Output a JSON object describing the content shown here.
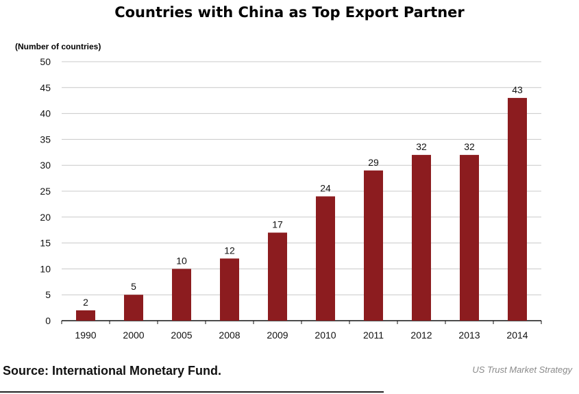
{
  "chart_data": {
    "type": "bar",
    "title": "Countries with China as Top Export Partner",
    "ylabel": "(Number of countries)",
    "xlabel": "",
    "categories": [
      "1990",
      "2000",
      "2005",
      "2008",
      "2009",
      "2010",
      "2011",
      "2012",
      "2013",
      "2014"
    ],
    "values": [
      2,
      5,
      10,
      12,
      17,
      24,
      29,
      32,
      32,
      43
    ],
    "data_labels": [
      "2",
      "5",
      "10",
      "12",
      "17",
      "24",
      "29",
      "32",
      "32",
      "43"
    ],
    "ylim": [
      0,
      50
    ],
    "yticks": [
      0,
      5,
      10,
      15,
      20,
      25,
      30,
      35,
      40,
      45,
      50
    ],
    "grid": true,
    "legend": "none",
    "bar_color": "#8c1c1f"
  },
  "footer": {
    "source": "Source: International Monetary Fund.",
    "credit": "US Trust Market Strategy"
  }
}
